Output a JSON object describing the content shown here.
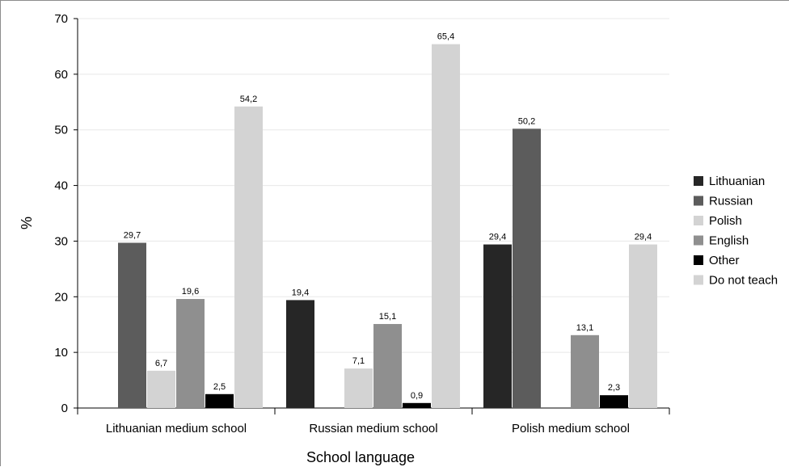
{
  "chart_data": {
    "type": "bar",
    "xlabel": "School language",
    "ylabel": "%",
    "ylim": [
      0,
      70
    ],
    "yticks": [
      0,
      10,
      20,
      30,
      40,
      50,
      60,
      70
    ],
    "grid": true,
    "legend_position": "right",
    "categories": [
      "Lithuanian medium school",
      "Russian medium school",
      "Polish medium school"
    ],
    "series": [
      {
        "name": "Lithuanian",
        "color": "#262626",
        "values": [
          null,
          19.4,
          29.4
        ],
        "labels": [
          "",
          "19,4",
          "29,4"
        ]
      },
      {
        "name": "Russian",
        "color": "#5c5c5c",
        "values": [
          29.7,
          null,
          50.2
        ],
        "labels": [
          "29,7",
          "",
          "50,2"
        ]
      },
      {
        "name": "Polish",
        "color": "#d3d3d3",
        "values": [
          6.7,
          7.1,
          null
        ],
        "labels": [
          "6,7",
          "7,1",
          ""
        ]
      },
      {
        "name": "English",
        "color": "#8f8f8f",
        "values": [
          19.6,
          15.1,
          13.1
        ],
        "labels": [
          "19,6",
          "15,1",
          "13,1"
        ]
      },
      {
        "name": "Other",
        "color": "#000000",
        "values": [
          2.5,
          0.9,
          2.3
        ],
        "labels": [
          "2,5",
          "0,9",
          "2,3"
        ]
      },
      {
        "name": "Do not teach",
        "color": "#d3d3d3",
        "values": [
          54.2,
          65.4,
          29.4
        ],
        "labels": [
          "54,2",
          "65,4",
          "29,4"
        ]
      }
    ]
  }
}
